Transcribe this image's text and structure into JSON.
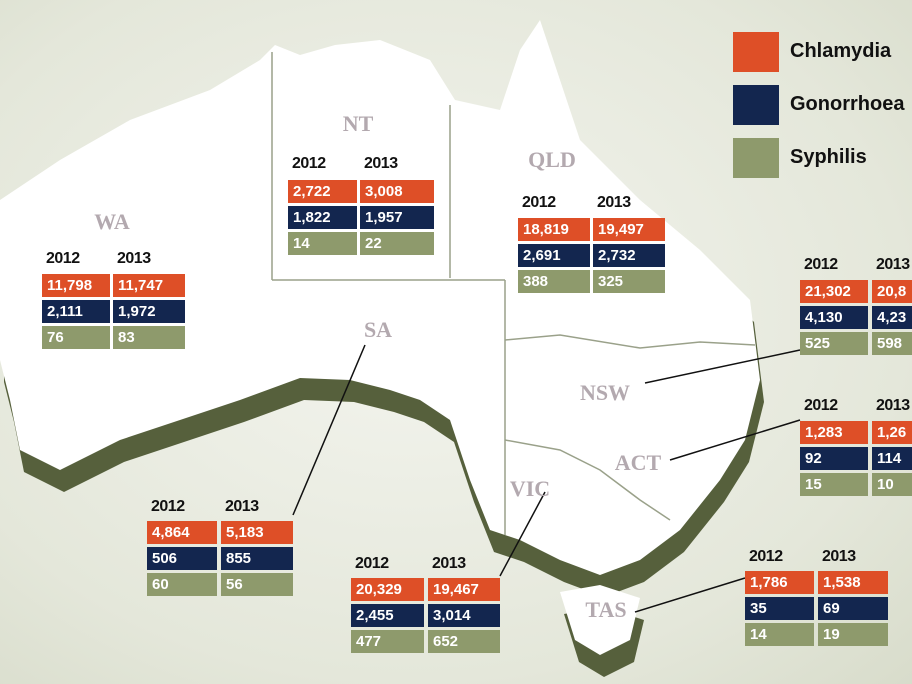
{
  "legend": [
    "Chlamydia",
    "Gonorrhoea",
    "Syphilis"
  ],
  "regions": [
    {
      "name": "WA",
      "years": [
        "2012",
        "2013"
      ],
      "rows": [
        [
          "11,798",
          "11,747"
        ],
        [
          "2,111",
          "1,972"
        ],
        [
          "76",
          "83"
        ]
      ]
    },
    {
      "name": "NT",
      "years": [
        "2012",
        "2013"
      ],
      "rows": [
        [
          "2,722",
          "3,008"
        ],
        [
          "1,822",
          "1,957"
        ],
        [
          "14",
          "22"
        ]
      ]
    },
    {
      "name": "QLD",
      "years": [
        "2012",
        "2013"
      ],
      "rows": [
        [
          "18,819",
          "19,497"
        ],
        [
          "2,691",
          "2,732"
        ],
        [
          "388",
          "325"
        ]
      ]
    },
    {
      "name": "NSW",
      "years": [
        "2012",
        "2013"
      ],
      "rows": [
        [
          "21,302",
          "20,8"
        ],
        [
          "4,130",
          "4,23"
        ],
        [
          "525",
          "598"
        ]
      ]
    },
    {
      "name": "ACT",
      "years": [
        "2012",
        "2013"
      ],
      "rows": [
        [
          "1,283",
          "1,26"
        ],
        [
          "92",
          "114"
        ],
        [
          "15",
          "10"
        ]
      ]
    },
    {
      "name": "SA",
      "years": [
        "2012",
        "2013"
      ],
      "rows": [
        [
          "4,864",
          "5,183"
        ],
        [
          "506",
          "855"
        ],
        [
          "60",
          "56"
        ]
      ]
    },
    {
      "name": "VIC",
      "years": [
        "2012",
        "2013"
      ],
      "rows": [
        [
          "20,329",
          "19,467"
        ],
        [
          "2,455",
          "3,014"
        ],
        [
          "477",
          "652"
        ]
      ]
    },
    {
      "name": "TAS",
      "years": [
        "2012",
        "2013"
      ],
      "rows": [
        [
          "1,786",
          "1,538"
        ],
        [
          "35",
          "69"
        ],
        [
          "14",
          "19"
        ]
      ]
    }
  ]
}
